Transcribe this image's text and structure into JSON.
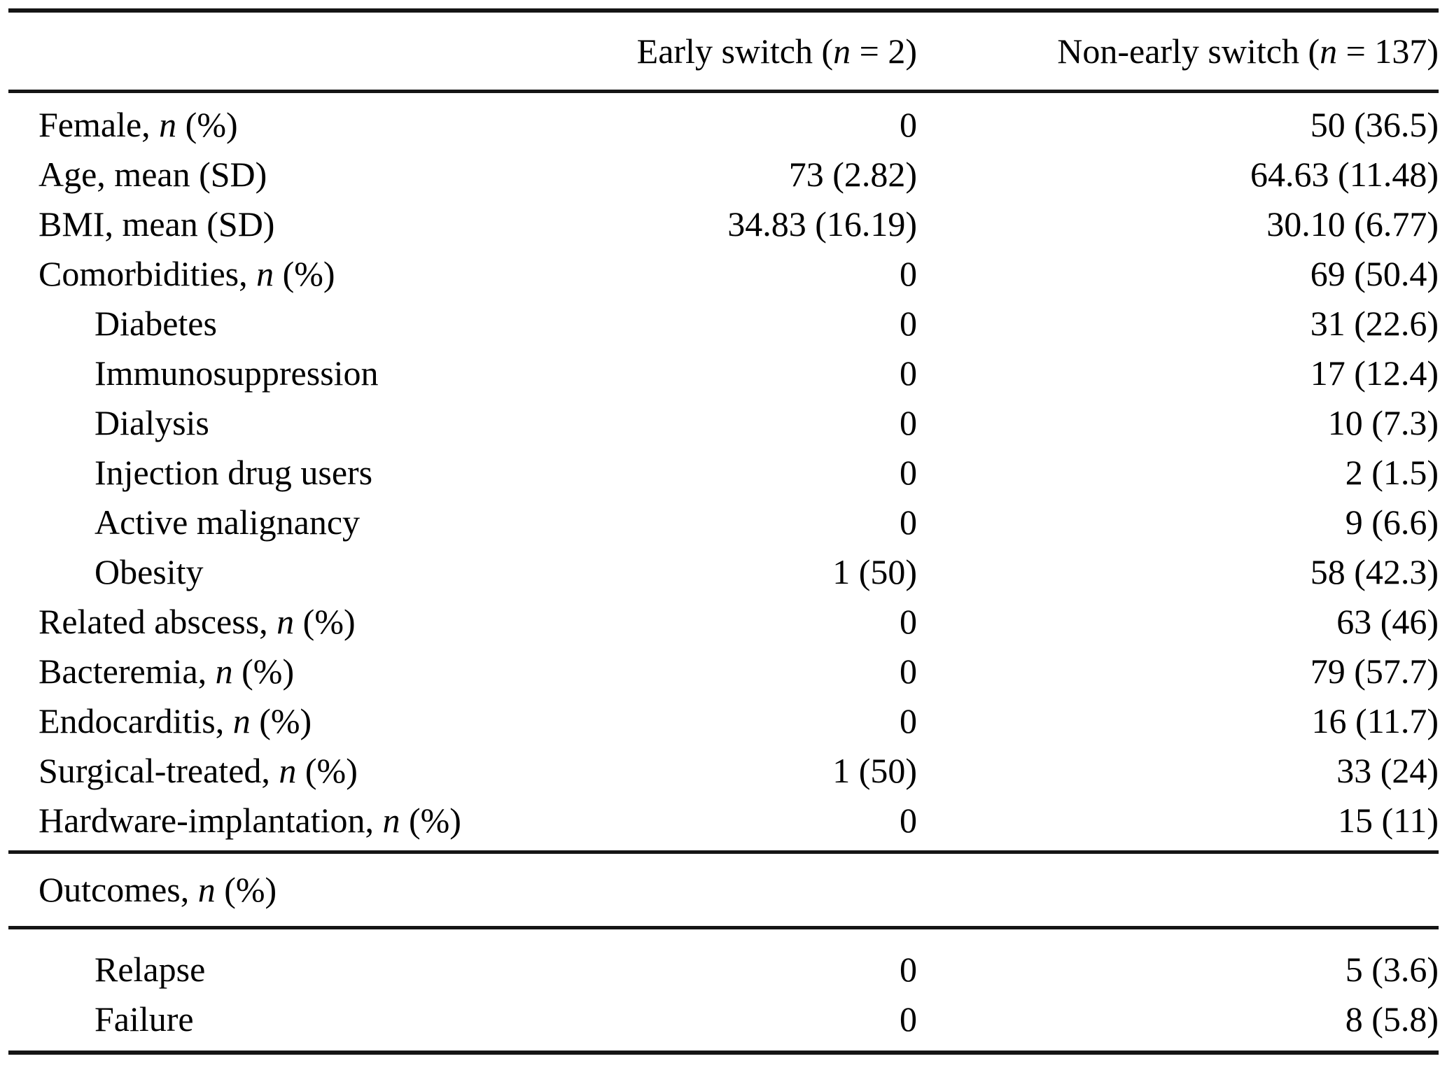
{
  "colors": {
    "background": "#ffffff",
    "text": "#000000",
    "rule": "#151515"
  },
  "table": {
    "header": {
      "label": "",
      "early_parts": [
        {
          "text": "Early switch ("
        },
        {
          "text": "n",
          "italic": true
        },
        {
          "text": " = 2)"
        }
      ],
      "non_early_parts": [
        {
          "text": "Non-early switch ("
        },
        {
          "text": "n",
          "italic": true
        },
        {
          "text": " = 137)"
        }
      ]
    },
    "main_rows": [
      {
        "indent": false,
        "label_parts": [
          {
            "text": "Female, "
          },
          {
            "text": "n",
            "italic": true
          },
          {
            "text": " (%)"
          }
        ],
        "early": "0",
        "non_early": "50 (36.5)"
      },
      {
        "indent": false,
        "label_parts": [
          {
            "text": "Age, mean (SD)"
          }
        ],
        "early": "73 (2.82)",
        "non_early": "64.63 (11.48)"
      },
      {
        "indent": false,
        "label_parts": [
          {
            "text": "BMI, mean (SD)"
          }
        ],
        "early": "34.83 (16.19)",
        "non_early": "30.10 (6.77)"
      },
      {
        "indent": false,
        "label_parts": [
          {
            "text": "Comorbidities, "
          },
          {
            "text": "n",
            "italic": true
          },
          {
            "text": " (%)"
          }
        ],
        "early": "0",
        "non_early": "69 (50.4)"
      },
      {
        "indent": true,
        "label_parts": [
          {
            "text": "Diabetes"
          }
        ],
        "early": "0",
        "non_early": "31 (22.6)"
      },
      {
        "indent": true,
        "label_parts": [
          {
            "text": "Immunosuppression"
          }
        ],
        "early": "0",
        "non_early": "17 (12.4)"
      },
      {
        "indent": true,
        "label_parts": [
          {
            "text": "Dialysis"
          }
        ],
        "early": "0",
        "non_early": "10 (7.3)"
      },
      {
        "indent": true,
        "label_parts": [
          {
            "text": "Injection drug users"
          }
        ],
        "early": "0",
        "non_early": "2 (1.5)"
      },
      {
        "indent": true,
        "label_parts": [
          {
            "text": "Active malignancy"
          }
        ],
        "early": "0",
        "non_early": "9 (6.6)"
      },
      {
        "indent": true,
        "label_parts": [
          {
            "text": "Obesity"
          }
        ],
        "early": "1 (50)",
        "non_early": "58 (42.3)"
      },
      {
        "indent": false,
        "label_parts": [
          {
            "text": "Related abscess, "
          },
          {
            "text": "n",
            "italic": true
          },
          {
            "text": " (%)"
          }
        ],
        "early": "0",
        "non_early": "63 (46)"
      },
      {
        "indent": false,
        "label_parts": [
          {
            "text": "Bacteremia, "
          },
          {
            "text": "n",
            "italic": true
          },
          {
            "text": " (%)"
          }
        ],
        "early": "0",
        "non_early": "79 (57.7)"
      },
      {
        "indent": false,
        "label_parts": [
          {
            "text": "Endocarditis, "
          },
          {
            "text": "n",
            "italic": true
          },
          {
            "text": " (%)"
          }
        ],
        "early": "0",
        "non_early": "16 (11.7)"
      },
      {
        "indent": false,
        "label_parts": [
          {
            "text": "Surgical-treated, "
          },
          {
            "text": "n",
            "italic": true
          },
          {
            "text": " (%)"
          }
        ],
        "early": "1 (50)",
        "non_early": "33 (24)"
      },
      {
        "indent": false,
        "label_parts": [
          {
            "text": "Hardware-implantation, "
          },
          {
            "text": "n",
            "italic": true
          },
          {
            "text": " (%)"
          }
        ],
        "early": "0",
        "non_early": "15 (11)"
      }
    ],
    "outcomes_header": {
      "label_parts": [
        {
          "text": "Outcomes, "
        },
        {
          "text": "n",
          "italic": true
        },
        {
          "text": " (%)"
        }
      ]
    },
    "outcome_rows": [
      {
        "indent": true,
        "label_parts": [
          {
            "text": "Relapse"
          }
        ],
        "early": "0",
        "non_early": "5 (3.6)"
      },
      {
        "indent": true,
        "label_parts": [
          {
            "text": "Failure"
          }
        ],
        "early": "0",
        "non_early": "8 (5.8)"
      }
    ]
  }
}
